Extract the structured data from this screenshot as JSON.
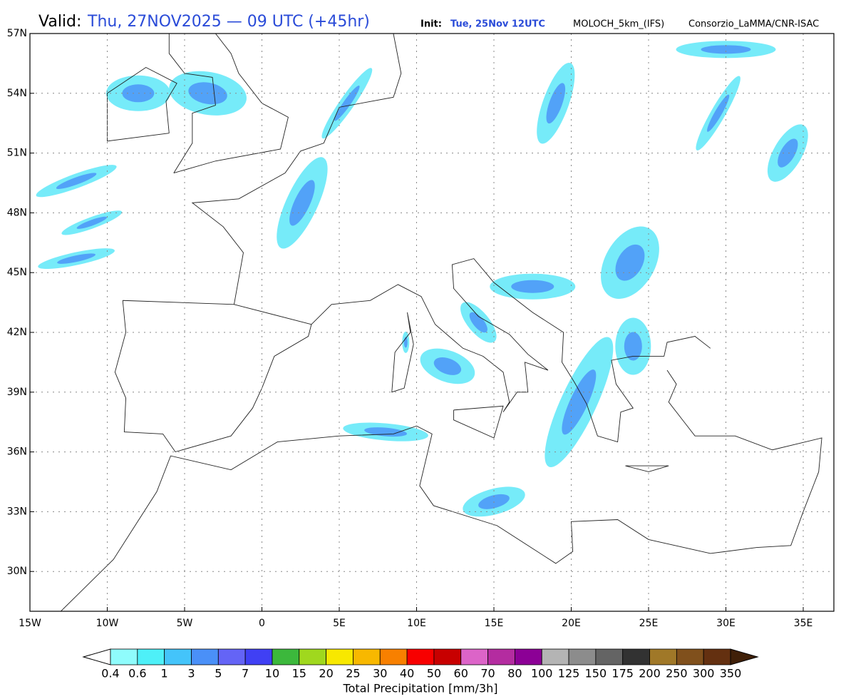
{
  "header": {
    "valid_label": "Valid:",
    "valid_time": "Thu, 27NOV2025 — 09 UTC (+45hr)",
    "init_label": "Init:",
    "init_time": "Tue, 25Nov 12UTC",
    "model": "MOLOCH_5km_(IFS)",
    "credit": "Consorzio_LaMMA/CNR-ISAC"
  },
  "map": {
    "lat_labels": [
      "57N",
      "54N",
      "51N",
      "48N",
      "45N",
      "42N",
      "39N",
      "36N",
      "33N",
      "30N"
    ],
    "lon_labels": [
      "15W",
      "10W",
      "5W",
      "0",
      "5E",
      "10E",
      "15E",
      "20E",
      "25E",
      "30E",
      "35E"
    ]
  },
  "colorbar": {
    "title": "Total Precipitation [mm/3h]",
    "labels": [
      "0.4",
      "0.6",
      "1",
      "3",
      "5",
      "7",
      "10",
      "15",
      "20",
      "25",
      "30",
      "40",
      "50",
      "60",
      "70",
      "80",
      "100",
      "125",
      "150",
      "175",
      "200",
      "250",
      "300",
      "350"
    ],
    "colors": [
      "#8ffcfc",
      "#4ef0f8",
      "#44c4fa",
      "#4a90f8",
      "#6464f6",
      "#4040f4",
      "#3cb83c",
      "#a0d81e",
      "#f8e800",
      "#f8b800",
      "#f88000",
      "#f80000",
      "#c80000",
      "#dc64c8",
      "#b42ca0",
      "#8c0096",
      "#b4b4b4",
      "#8c8c8c",
      "#646464",
      "#323232",
      "#a07828",
      "#80501c",
      "#643010"
    ],
    "under_color": "#ffffff",
    "over_color": "#402008"
  }
}
